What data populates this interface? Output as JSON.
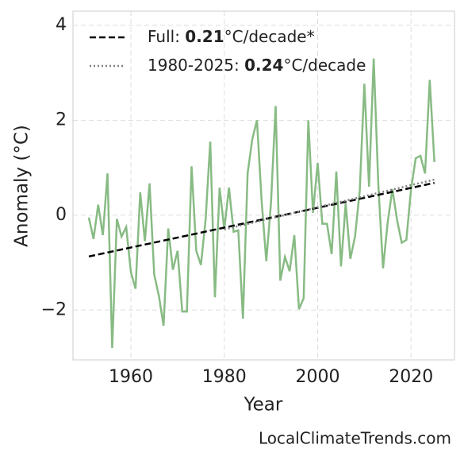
{
  "chart_data": {
    "type": "line",
    "xlabel": "Year",
    "ylabel": "Anomaly (°C)",
    "source": "LocalClimateTrends.com",
    "x": [
      1951,
      1952,
      1953,
      1954,
      1955,
      1956,
      1957,
      1958,
      1959,
      1960,
      1961,
      1962,
      1963,
      1964,
      1965,
      1966,
      1967,
      1968,
      1969,
      1970,
      1971,
      1972,
      1973,
      1974,
      1975,
      1976,
      1977,
      1978,
      1979,
      1980,
      1981,
      1982,
      1983,
      1984,
      1985,
      1986,
      1987,
      1988,
      1989,
      1990,
      1991,
      1992,
      1993,
      1994,
      1995,
      1996,
      1997,
      1998,
      1999,
      2000,
      2001,
      2002,
      2003,
      2004,
      2005,
      2006,
      2007,
      2008,
      2009,
      2010,
      2011,
      2012,
      2013,
      2014,
      2015,
      2016,
      2017,
      2018,
      2019,
      2020,
      2021,
      2022,
      2023,
      2024,
      2025
    ],
    "series": [
      {
        "color": "#88bb84",
        "values": [
          -0.05,
          -0.5,
          0.22,
          -0.42,
          0.88,
          -2.8,
          -0.08,
          -0.45,
          -0.25,
          -1.2,
          -1.55,
          0.48,
          -0.55,
          0.67,
          -1.25,
          -1.7,
          -2.33,
          -0.28,
          -1.15,
          -0.75,
          -2.03,
          -2.03,
          1.03,
          -0.75,
          -1.05,
          -0.1,
          1.55,
          -1.73,
          0.58,
          -0.3,
          0.58,
          -0.35,
          -0.32,
          -2.18,
          0.88,
          1.6,
          2.0,
          0.3,
          -0.97,
          0.25,
          2.3,
          -1.38,
          -0.88,
          -1.18,
          -0.42,
          -1.98,
          -1.75,
          2.0,
          0.05,
          1.1,
          -0.18,
          -0.18,
          -0.82,
          0.92,
          -1.08,
          0.25,
          -0.92,
          -0.45,
          0.5,
          2.77,
          0.6,
          3.3,
          0.62,
          -1.12,
          -0.15,
          0.55,
          -0.1,
          -0.58,
          -0.52,
          0.55,
          1.2,
          1.25,
          0.88,
          2.85,
          1.12
        ]
      },
      {
        "name_parts": [
          "Full: ",
          "0.21",
          "°C/decade*"
        ],
        "color": "#000000",
        "style": "dashed",
        "x": [
          1951,
          2025
        ],
        "values": [
          -0.87,
          0.68
        ]
      },
      {
        "name_parts": [
          "1980-2025: ",
          "0.24",
          "°C/decade"
        ],
        "color": "#808080",
        "style": "dotted",
        "x": [
          1980,
          2025
        ],
        "values": [
          -0.3,
          0.75
        ]
      }
    ],
    "xlim": [
      1947.6,
      2029.3
    ],
    "ylim": [
      -3.05,
      4.3
    ],
    "xticks": [
      1960,
      1980,
      2000,
      2020
    ],
    "yticks": [
      {
        "value": -2,
        "label": "−2"
      },
      0,
      2,
      4
    ],
    "grid": true,
    "legend": "upper left"
  }
}
